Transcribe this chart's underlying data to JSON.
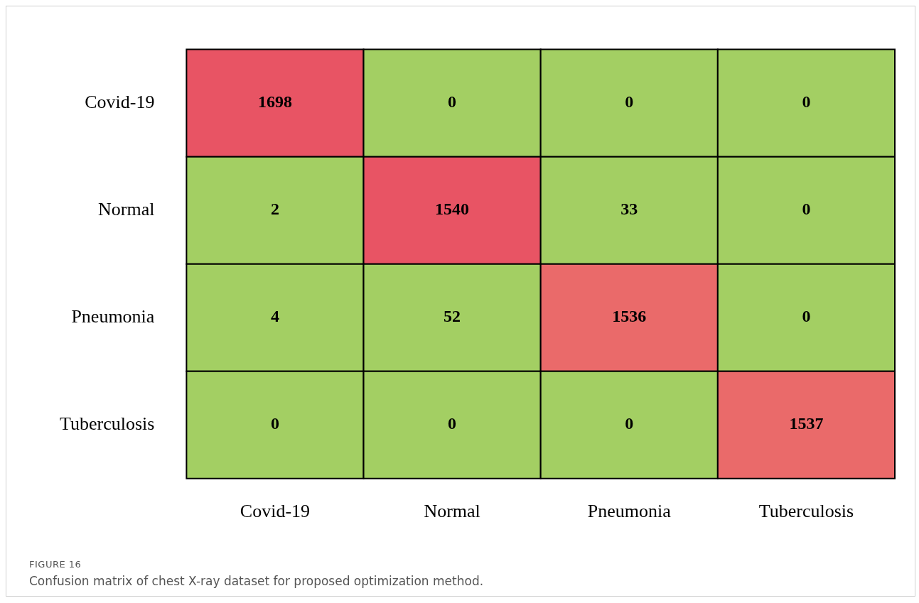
{
  "chart_data": {
    "type": "heatmap",
    "categories": [
      "Covid-19",
      "Normal",
      "Pneumonia",
      "Tuberculosis"
    ],
    "y_categories": [
      "Covid-19",
      "Normal",
      "Pneumonia",
      "Tuberculosis"
    ],
    "cells": [
      [
        1698,
        0,
        0,
        0
      ],
      [
        2,
        1540,
        33,
        0
      ],
      [
        4,
        52,
        1536,
        0
      ],
      [
        0,
        0,
        0,
        1537
      ]
    ],
    "colors": [
      [
        "#e85464",
        "#a3cf63",
        "#a3cf63",
        "#a3cf63"
      ],
      [
        "#a3cf63",
        "#e85464",
        "#a3cf63",
        "#a3cf63"
      ],
      [
        "#a3cf63",
        "#a3cf63",
        "#ea6a6a",
        "#a3cf63"
      ],
      [
        "#a3cf63",
        "#a3cf63",
        "#a3cf63",
        "#ea6a6a"
      ]
    ],
    "data_labels": true,
    "annotations": [
      "FIGURE 16",
      "Confusion matrix of chest X-ray dataset for proposed optimization method."
    ]
  }
}
